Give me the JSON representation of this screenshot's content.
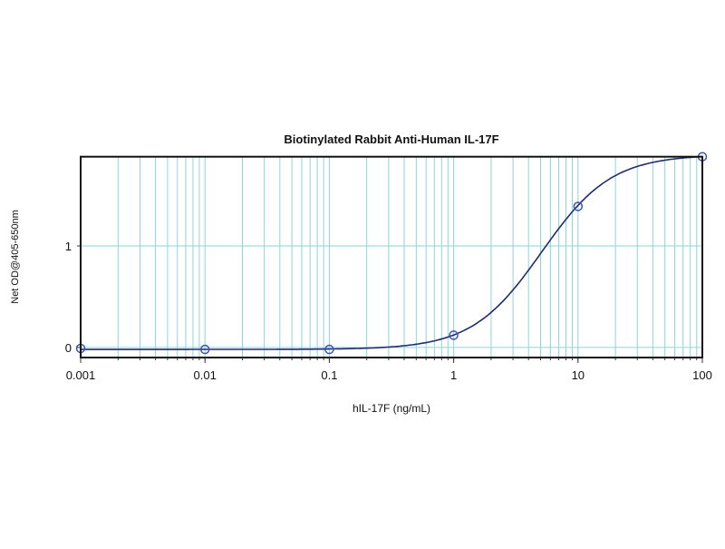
{
  "chart_data": {
    "type": "scatter",
    "title": "Biotinylated Rabbit Anti-Human IL-17F",
    "xlabel": "hIL-17F (ng/mL)",
    "ylabel": "Net OD@405-650nm",
    "xscale": "log",
    "xlim": [
      0.001,
      100
    ],
    "ylim": [
      -0.1,
      1.88
    ],
    "xticks": [
      0.001,
      0.01,
      0.1,
      1,
      10,
      100
    ],
    "xtick_labels": [
      "0.001",
      "0.01",
      "0.1",
      "1",
      "10",
      "100"
    ],
    "yticks": [
      0,
      1
    ],
    "ytick_labels": [
      "0",
      "1"
    ],
    "grid": "vertical minor log gridlines, horizontal at y ticks",
    "legend": "none",
    "points": {
      "x": [
        0.001,
        0.01,
        0.1,
        1,
        10,
        100
      ],
      "y": [
        -0.01,
        -0.02,
        -0.02,
        0.12,
        1.39,
        1.88
      ]
    },
    "fit_curve": {
      "model": "4PL",
      "bottom": -0.02,
      "top": 1.9,
      "ec50": 5.1,
      "hill": 1.55
    },
    "colors": {
      "grid": "#8fd3de",
      "curve": "#1f2d6e",
      "marker": "#3a55b0",
      "frame": "#111111"
    }
  }
}
